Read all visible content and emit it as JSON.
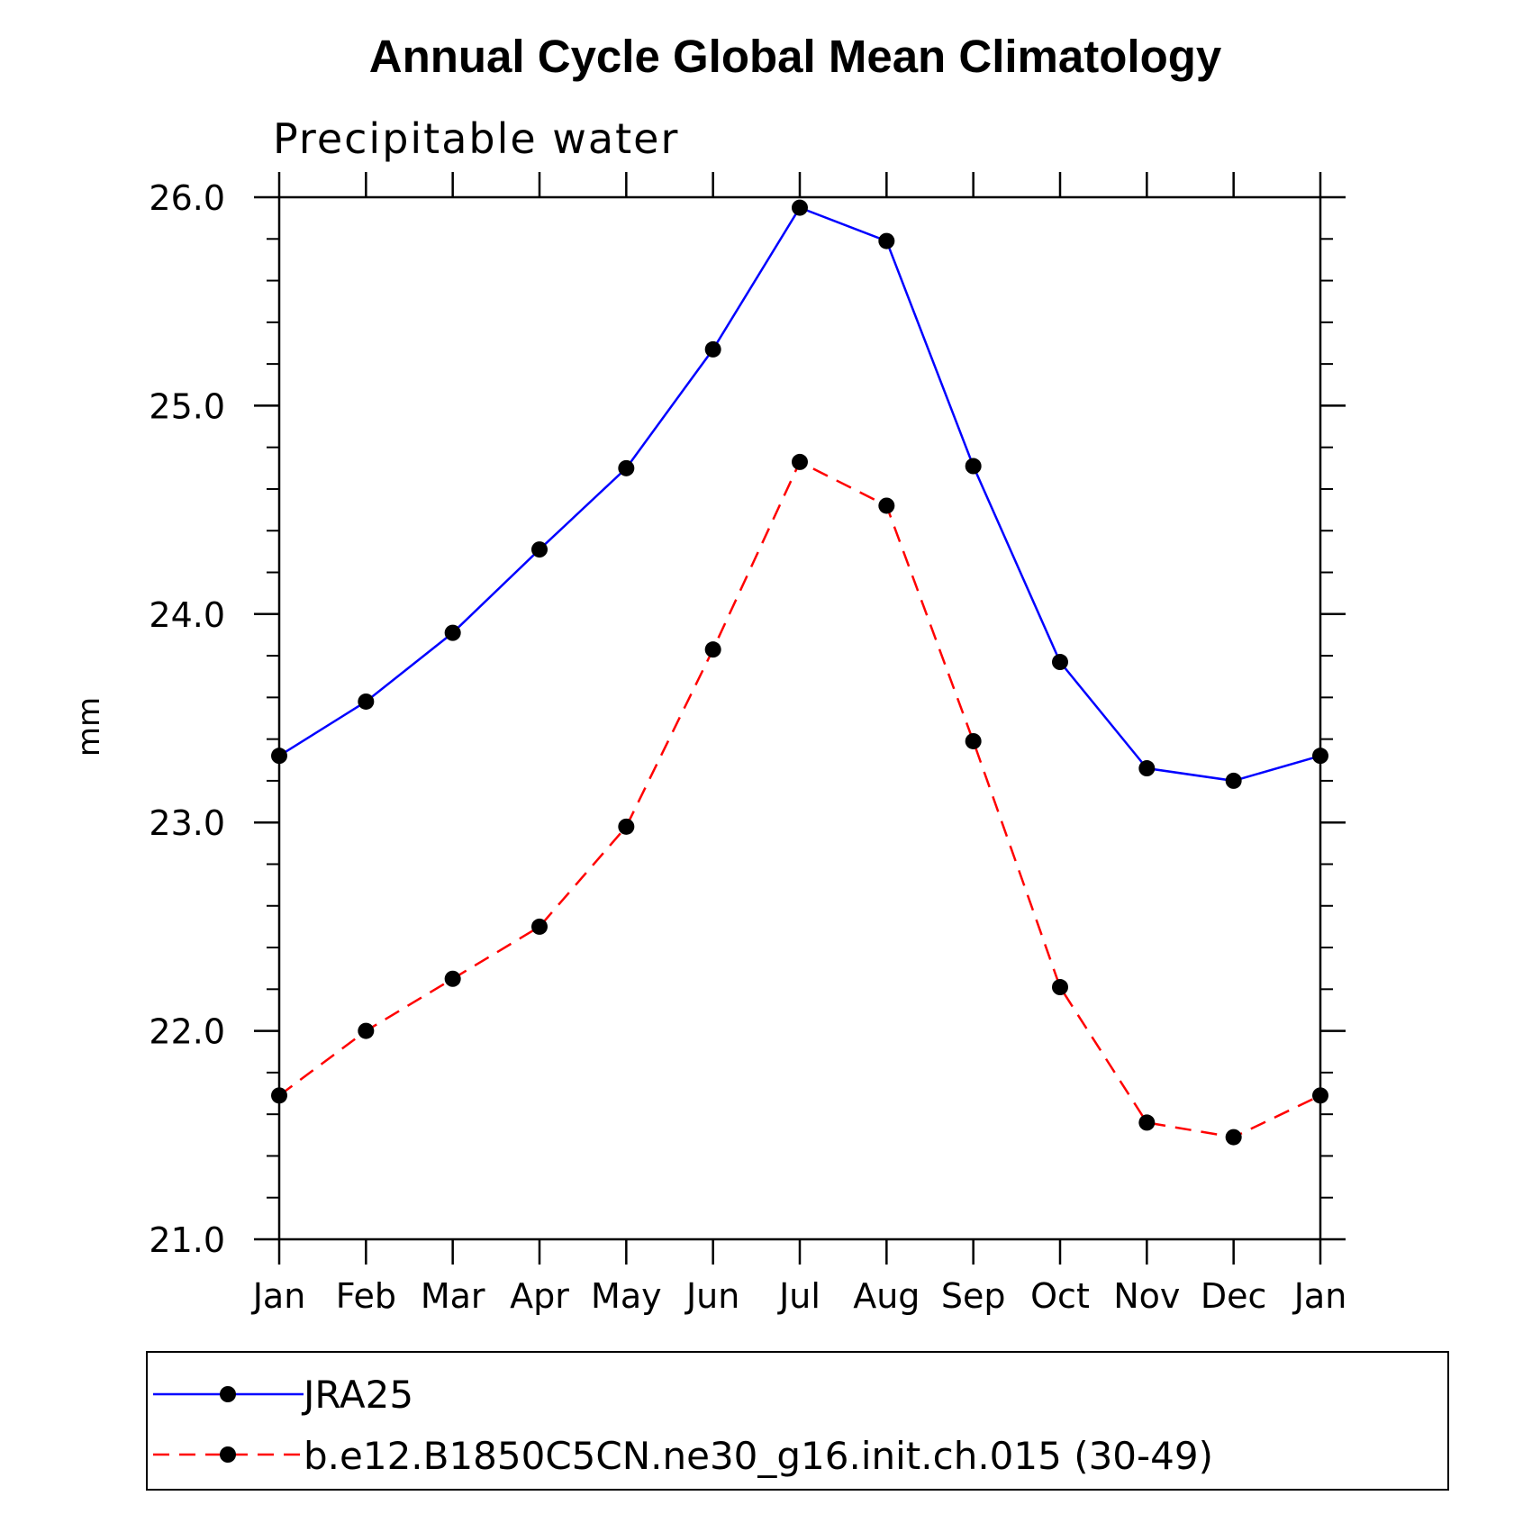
{
  "chart_data": {
    "type": "line",
    "title": "Annual Cycle Global Mean Climatology",
    "subtitle": "Precipitable water",
    "ylabel": "mm",
    "xlabel": "",
    "categories": [
      "Jan",
      "Feb",
      "Mar",
      "Apr",
      "May",
      "Jun",
      "Jul",
      "Aug",
      "Sep",
      "Oct",
      "Nov",
      "Dec",
      "Jan"
    ],
    "ylim": [
      21.0,
      26.0
    ],
    "yticks": [
      "21.0",
      "22.0",
      "23.0",
      "24.0",
      "25.0",
      "26.0"
    ],
    "grid": false,
    "legend_position": "bottom",
    "series": [
      {
        "name": "JRA25",
        "color": "#0000ff",
        "line_style": "solid",
        "marker": "filled-circle",
        "values": [
          23.32,
          23.58,
          23.91,
          24.31,
          24.7,
          25.27,
          25.95,
          25.79,
          24.71,
          23.77,
          23.26,
          23.2,
          23.32
        ]
      },
      {
        "name": "b.e12.B1850C5CN.ne30_g16.init.ch.015 (30-49)",
        "color": "#ff0000",
        "line_style": "dashed",
        "marker": "filled-circle",
        "values": [
          21.69,
          22.0,
          22.25,
          22.5,
          22.98,
          23.83,
          24.73,
          24.52,
          23.39,
          22.21,
          21.56,
          21.49,
          21.69
        ]
      }
    ]
  }
}
